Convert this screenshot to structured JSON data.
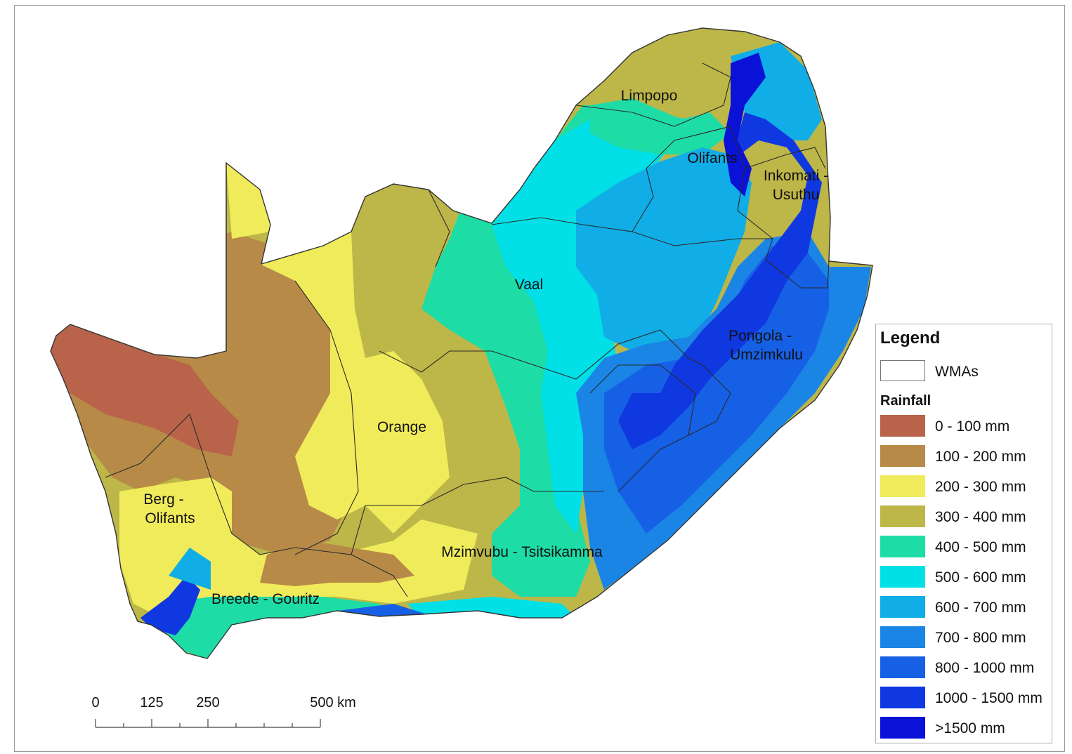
{
  "map": {
    "wma_labels": {
      "limpopo": "Limpopo",
      "olifants": "Olifants",
      "inkomati_1": "Inkomati -",
      "inkomati_2": "Usuthu",
      "vaal": "Vaal",
      "pongola_1": "Pongola -",
      "pongola_2": "Umzimkulu",
      "orange": "Orange",
      "berg_1": "Berg -",
      "berg_2": "Olifants",
      "mzimvubu": "Mzimvubu - Tsitsikamma",
      "breede": "Breede - Gouritz"
    }
  },
  "legend": {
    "title": "Legend",
    "wma_label": "WMAs",
    "rainfall_title": "Rainfall",
    "classes": [
      {
        "label": "0 - 100 mm",
        "color": "#b8634a"
      },
      {
        "label": "100 - 200 mm",
        "color": "#b78a48"
      },
      {
        "label": "200 - 300 mm",
        "color": "#f0eb5a"
      },
      {
        "label": "300 - 400 mm",
        "color": "#bdb648"
      },
      {
        "label": "400 - 500 mm",
        "color": "#1edca6"
      },
      {
        "label": "500 - 600 mm",
        "color": "#00e0e6"
      },
      {
        "label": "600 - 700 mm",
        "color": "#11ade6"
      },
      {
        "label": "700 - 800 mm",
        "color": "#1b85e6"
      },
      {
        "label": "800 - 1000 mm",
        "color": "#1660e6"
      },
      {
        "label": "1000 - 1500 mm",
        "color": "#0f38e0"
      },
      {
        "label": ">1500 mm",
        "color": "#0a12d8"
      }
    ]
  },
  "scalebar": {
    "labels": [
      "0",
      "125",
      "250",
      "500 km"
    ]
  }
}
